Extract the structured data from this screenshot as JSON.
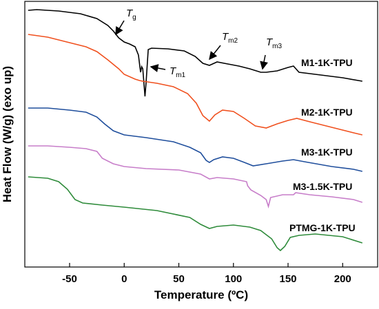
{
  "chart_data": {
    "type": "line",
    "x_label": "Temperature (ºC)",
    "y_label": "Heat Flow (W/g) (exo up)",
    "xlim": [
      -91,
      232
    ],
    "xticks": [
      -50,
      0,
      50,
      100,
      150,
      200
    ],
    "ylim": [
      0,
      386
    ],
    "series": [
      {
        "name": "M1-1K-TPU",
        "color": "#000000",
        "x": [
          -88,
          -80,
          -60,
          -40,
          -25,
          -15,
          -10,
          -5,
          0,
          5,
          10,
          13,
          15,
          16,
          17,
          19,
          20,
          22,
          25,
          40,
          55,
          65,
          72,
          78,
          85,
          95,
          105,
          115,
          125,
          130,
          140,
          150,
          155,
          160,
          180,
          200,
          218
        ],
        "values": [
          373,
          374,
          372,
          368,
          361,
          351,
          343,
          333,
          327,
          324,
          320,
          308,
          283,
          291,
          288,
          248,
          268,
          316,
          318,
          317,
          314,
          306,
          296,
          293,
          298,
          295,
          292,
          288,
          283,
          283,
          285,
          290,
          292,
          283,
          279,
          275,
          270
        ]
      },
      {
        "name": "M2-1K-TPU",
        "color": "#f0501e",
        "x": [
          -88,
          -70,
          -50,
          -35,
          -25,
          -15,
          -5,
          0,
          10,
          14,
          17,
          30,
          45,
          58,
          66,
          72,
          78,
          83,
          90,
          100,
          110,
          120,
          130,
          140,
          150,
          158,
          170,
          190,
          210,
          218
        ],
        "values": [
          338,
          334,
          326,
          320,
          313,
          301,
          288,
          280,
          273,
          271,
          270,
          267,
          262,
          252,
          238,
          220,
          212,
          221,
          228,
          226,
          216,
          205,
          202,
          208,
          213,
          216,
          211,
          203,
          195,
          192
        ]
      },
      {
        "name": "M3-1K-TPU",
        "color": "#1f4e9c",
        "x": [
          -88,
          -70,
          -50,
          -35,
          -25,
          -18,
          -10,
          0,
          20,
          45,
          60,
          70,
          75,
          78,
          82,
          90,
          100,
          110,
          118,
          130,
          145,
          155,
          165,
          190,
          210,
          218
        ],
        "values": [
          231,
          231,
          228,
          225,
          218,
          208,
          198,
          192,
          188,
          182,
          174,
          166,
          155,
          152,
          156,
          160,
          158,
          152,
          147,
          150,
          154,
          156,
          153,
          146,
          142,
          139
        ]
      },
      {
        "name": "M3-1.5K-TPU",
        "color": "#c77dc9",
        "x": [
          -88,
          -70,
          -50,
          -35,
          -25,
          -20,
          -10,
          0,
          20,
          50,
          70,
          78,
          85,
          100,
          112,
          113,
          116,
          125,
          130,
          132,
          134,
          145,
          155,
          157,
          170,
          190,
          210,
          218
        ],
        "values": [
          176,
          176,
          174,
          172,
          168,
          158,
          150,
          146,
          143,
          141,
          135,
          128,
          130,
          128,
          124,
          118,
          112,
          104,
          98,
          88,
          101,
          105,
          105,
          108,
          105,
          102,
          98,
          94
        ]
      },
      {
        "name": "PTMG-1K-TPU",
        "color": "#2e8b3a",
        "x": [
          -88,
          -70,
          -60,
          -52,
          -45,
          -38,
          -20,
          0,
          30,
          60,
          70,
          78,
          85,
          100,
          115,
          125,
          135,
          140,
          143,
          147,
          152,
          160,
          175,
          200,
          218
        ],
        "values": [
          131,
          129,
          124,
          113,
          98,
          93,
          90,
          87,
          82,
          72,
          62,
          56,
          59,
          61,
          58,
          53,
          41,
          28,
          24,
          30,
          43,
          46,
          48,
          44,
          35
        ]
      }
    ],
    "annotations": [
      {
        "text": "T",
        "subscript": "g"
      },
      {
        "text": "T",
        "subscript": "m1"
      },
      {
        "text": "T",
        "subscript": "m2"
      },
      {
        "text": "T",
        "subscript": "m3"
      }
    ]
  }
}
